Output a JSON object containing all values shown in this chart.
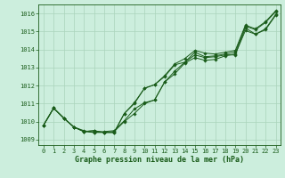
{
  "title": "Graphe pression niveau de la mer (hPa)",
  "ylabel_ticks": [
    1009,
    1010,
    1011,
    1012,
    1013,
    1014,
    1015,
    1016
  ],
  "xlabel_ticks": [
    0,
    1,
    2,
    3,
    4,
    5,
    6,
    7,
    8,
    9,
    10,
    11,
    12,
    13,
    14,
    15,
    16,
    17,
    18,
    19,
    20,
    21,
    22,
    23
  ],
  "xlim": [
    -0.5,
    23.5
  ],
  "ylim": [
    1008.7,
    1016.5
  ],
  "background_color": "#cceedd",
  "grid_color": "#aad4bb",
  "line_color": "#1a5c1a",
  "lines": [
    [
      1009.8,
      1010.75,
      1010.2,
      1009.7,
      1009.45,
      1009.4,
      1009.4,
      1009.45,
      1010.0,
      1010.45,
      1011.0,
      1011.2,
      1012.2,
      1012.8,
      1013.3,
      1013.7,
      1013.55,
      1013.6,
      1013.7,
      1013.7,
      1015.2,
      1014.85,
      1015.1,
      1015.9
    ],
    [
      1009.8,
      1010.75,
      1010.2,
      1009.7,
      1009.45,
      1009.5,
      1009.4,
      1009.4,
      1010.45,
      1011.0,
      1011.85,
      1012.05,
      1012.5,
      1013.15,
      1013.3,
      1013.85,
      1013.6,
      1013.65,
      1013.75,
      1013.85,
      1015.3,
      1015.1,
      1015.5,
      1016.1
    ],
    [
      1009.8,
      1010.75,
      1010.2,
      1009.7,
      1009.45,
      1009.5,
      1009.4,
      1009.4,
      1010.45,
      1011.05,
      1011.85,
      1012.05,
      1012.55,
      1013.2,
      1013.5,
      1013.95,
      1013.8,
      1013.75,
      1013.85,
      1013.95,
      1015.35,
      1015.15,
      1015.55,
      1016.15
    ],
    [
      1009.8,
      1010.75,
      1010.2,
      1009.7,
      1009.5,
      1009.4,
      1009.45,
      1009.5,
      1010.05,
      1010.7,
      1011.05,
      1011.2,
      1012.2,
      1012.65,
      1013.25,
      1013.55,
      1013.4,
      1013.45,
      1013.65,
      1013.75,
      1015.05,
      1014.85,
      1015.15,
      1015.95
    ]
  ]
}
